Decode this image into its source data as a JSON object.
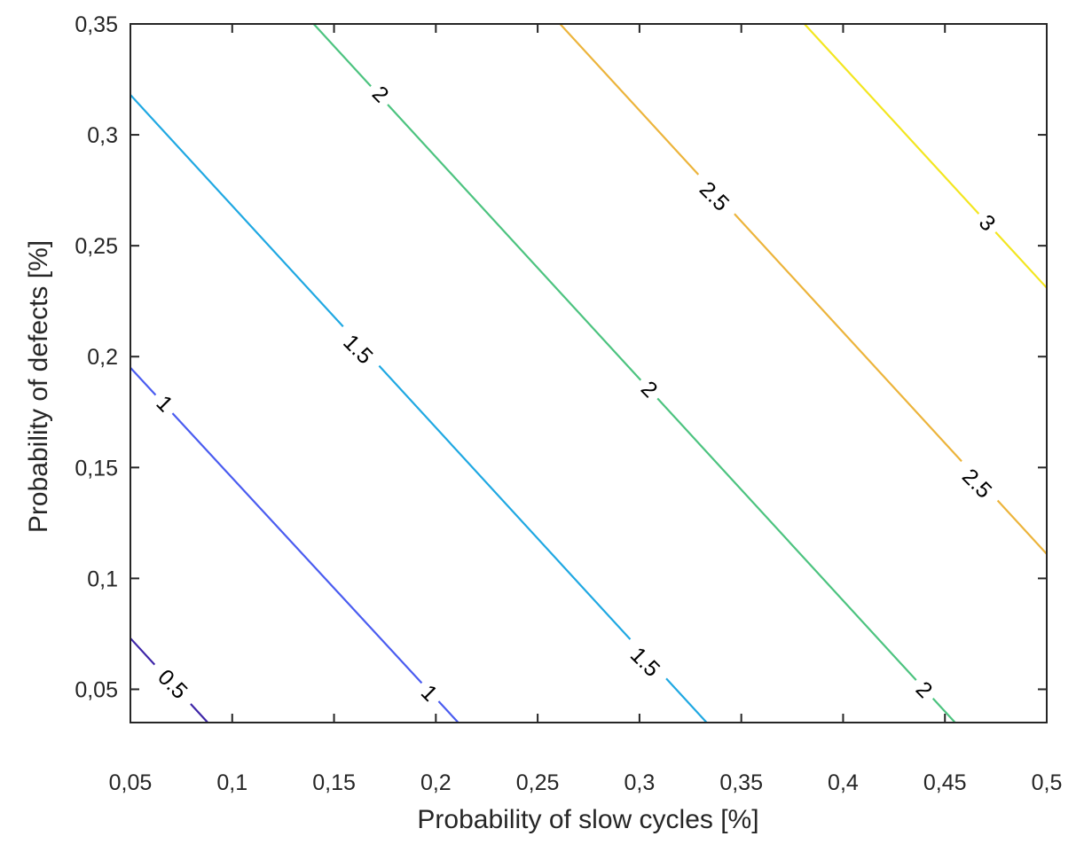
{
  "chart_data": {
    "type": "contour",
    "title": "",
    "xlabel": "Probability of slow cycles [%]",
    "ylabel": "Probability of defects [%]",
    "xlim": [
      0.05,
      0.5
    ],
    "ylim": [
      0.035,
      0.35
    ],
    "x_ticks": [
      0.05,
      0.1,
      0.15,
      0.2,
      0.25,
      0.3,
      0.35,
      0.4,
      0.45,
      0.5
    ],
    "x_tick_labels": [
      "0,05",
      "0,1",
      "0,15",
      "0,2",
      "0,25",
      "0,3",
      "0,35",
      "0,4",
      "0,45",
      "0,5"
    ],
    "y_ticks": [
      0.05,
      0.1,
      0.15,
      0.2,
      0.25,
      0.3,
      0.35
    ],
    "y_tick_labels": [
      "0,05",
      "0,1",
      "0,15",
      "0,2",
      "0,25",
      "0,3",
      "0,35"
    ],
    "grid": false,
    "levels": [
      {
        "level": 0.5,
        "label": "0,5",
        "color": "#3e26a8",
        "points": [
          [
            0.05,
            0.073
          ],
          [
            0.088,
            0.035
          ]
        ],
        "labels": [
          {
            "text": "0.5",
            "x": 0.071,
            "y": 0.0525,
            "angle": 45
          }
        ]
      },
      {
        "level": 1,
        "label": "1",
        "color": "#4a5cf0",
        "points": [
          [
            0.05,
            0.195
          ],
          [
            0.211,
            0.035
          ]
        ],
        "labels": [
          {
            "text": "1",
            "x": 0.067,
            "y": 0.179,
            "angle": 45
          },
          {
            "text": "1",
            "x": 0.197,
            "y": 0.0485,
            "angle": 45
          }
        ]
      },
      {
        "level": 1.5,
        "label": "1,5",
        "color": "#1fa8e2",
        "points": [
          [
            0.05,
            0.318
          ],
          [
            0.333,
            0.035
          ]
        ],
        "labels": [
          {
            "text": "1.5",
            "x": 0.162,
            "y": 0.2035,
            "angle": 45
          },
          {
            "text": "1.5",
            "x": 0.303,
            "y": 0.0625,
            "angle": 45
          }
        ]
      },
      {
        "level": 2,
        "label": "2",
        "color": "#4cc37f",
        "points": [
          [
            0.14,
            0.35
          ],
          [
            0.455,
            0.035
          ]
        ],
        "labels": [
          {
            "text": "2",
            "x": 0.173,
            "y": 0.3185,
            "angle": 45
          },
          {
            "text": "2",
            "x": 0.305,
            "y": 0.1855,
            "angle": 45
          },
          {
            "text": "2",
            "x": 0.44,
            "y": 0.05,
            "angle": 45
          }
        ]
      },
      {
        "level": 2.5,
        "label": "2,5",
        "color": "#ecb43b",
        "points": [
          [
            0.261,
            0.35
          ],
          [
            0.5,
            0.111
          ]
        ],
        "labels": [
          {
            "text": "2.5",
            "x": 0.337,
            "y": 0.2725,
            "angle": 45
          },
          {
            "text": "2.5",
            "x": 0.466,
            "y": 0.143,
            "angle": 45
          }
        ]
      },
      {
        "level": 3,
        "label": "3",
        "color": "#f3e620",
        "points": [
          [
            0.381,
            0.35
          ],
          [
            0.5,
            0.231
          ]
        ],
        "labels": [
          {
            "text": "3",
            "x": 0.471,
            "y": 0.2605,
            "angle": 45
          }
        ]
      }
    ]
  }
}
